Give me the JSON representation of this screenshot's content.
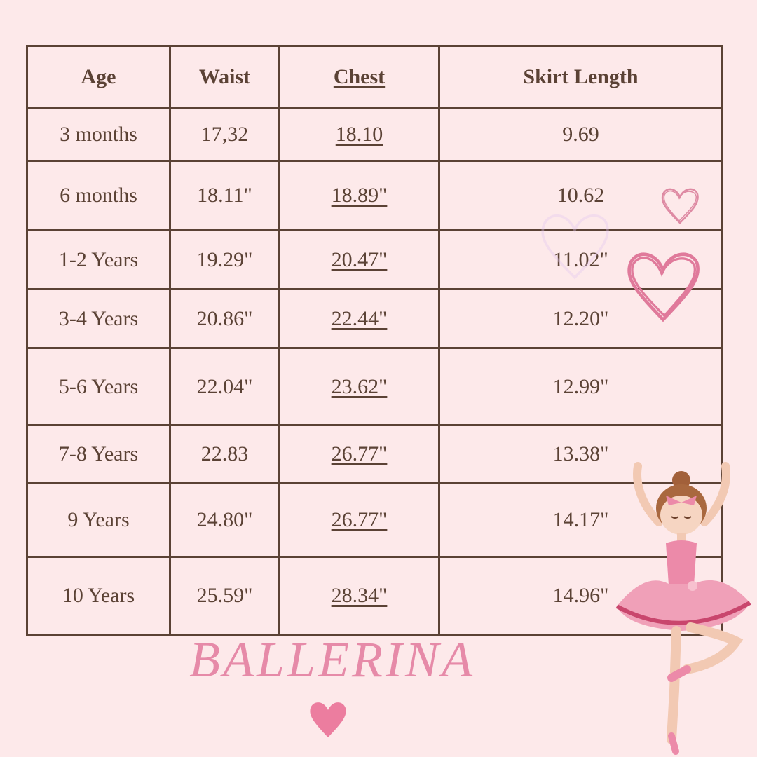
{
  "table": {
    "headers": [
      "Age",
      "Waist",
      "Chest",
      "Skirt Length"
    ],
    "rows": [
      [
        "3 months",
        "17,32",
        "18.10",
        "9.69"
      ],
      [
        "6 months",
        "18.11\"",
        "18.89\"",
        "10.62"
      ],
      [
        "1-2 Years",
        "19.29\"",
        "20.47\"",
        "11.02\""
      ],
      [
        "3-4 Years",
        "20.86\"",
        "22.44\"",
        "12.20\""
      ],
      [
        "5-6 Years",
        "22.04\"",
        "23.62\"",
        "12.99\""
      ],
      [
        "7-8 Years",
        "22.83",
        "26.77\"",
        "13.38\""
      ],
      [
        "9 Years",
        "24.80\"",
        "26.77\"",
        "14.17\""
      ],
      [
        "10 Years",
        "25.59\"",
        "28.34\"",
        "14.96\""
      ]
    ]
  },
  "brand_text": "BALLERINA",
  "colors": {
    "background": "#fde9ea",
    "text": "#5b4235",
    "accent_pink": "#e68aa8"
  },
  "icons": [
    "heart-outline-icon",
    "heart-filled-icon",
    "ballerina-illustration"
  ]
}
